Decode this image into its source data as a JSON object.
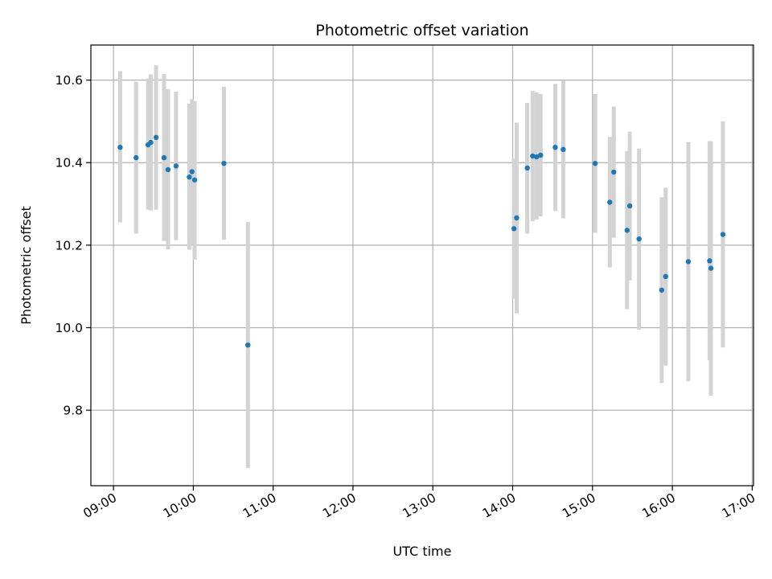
{
  "chart_data": {
    "type": "scatter",
    "title": "Photometric offset variation",
    "xlabel": "UTC time",
    "ylabel": "Photometric offset",
    "x_tick_labels": [
      "09:00",
      "10:00",
      "11:00",
      "12:00",
      "13:00",
      "14:00",
      "15:00",
      "16:00",
      "17:00"
    ],
    "x_ticks": [
      "09:00",
      "10:00",
      "11:00",
      "12:00",
      "13:00",
      "14:00",
      "15:00",
      "16:00",
      "17:00"
    ],
    "y_ticks": [
      9.8,
      10.0,
      10.2,
      10.4,
      10.6
    ],
    "y_tick_labels": [
      "9.8",
      "10.0",
      "10.2",
      "10.4",
      "10.6"
    ],
    "xlim": [
      "08:43",
      "17:01"
    ],
    "ylim": [
      9.617,
      10.685
    ],
    "grid": true,
    "marker_color": "#1f77b4",
    "errorbar_color": "#d3d3d3",
    "points": [
      {
        "time": "09:05",
        "value": 10.437,
        "low": 10.255,
        "high": 10.622
      },
      {
        "time": "09:17",
        "value": 10.412,
        "low": 10.228,
        "high": 10.596
      },
      {
        "time": "09:26",
        "value": 10.443,
        "low": 10.286,
        "high": 10.604
      },
      {
        "time": "09:28",
        "value": 10.449,
        "low": 10.284,
        "high": 10.614
      },
      {
        "time": "09:32",
        "value": 10.461,
        "low": 10.286,
        "high": 10.636
      },
      {
        "time": "09:38",
        "value": 10.412,
        "low": 10.21,
        "high": 10.615
      },
      {
        "time": "09:41",
        "value": 10.383,
        "low": 10.19,
        "high": 10.578
      },
      {
        "time": "09:47",
        "value": 10.392,
        "low": 10.212,
        "high": 10.572
      },
      {
        "time": "09:57",
        "value": 10.365,
        "low": 10.189,
        "high": 10.543
      },
      {
        "time": "09:59",
        "value": 10.378,
        "low": 10.202,
        "high": 10.554
      },
      {
        "time": "10:01",
        "value": 10.358,
        "low": 10.165,
        "high": 10.549
      },
      {
        "time": "10:23",
        "value": 10.398,
        "low": 10.213,
        "high": 10.584
      },
      {
        "time": "10:41",
        "value": 9.958,
        "low": 9.66,
        "high": 10.256
      },
      {
        "time": "14:01",
        "value": 10.24,
        "low": 10.07,
        "high": 10.41
      },
      {
        "time": "14:03",
        "value": 10.266,
        "low": 10.035,
        "high": 10.497
      },
      {
        "time": "14:11",
        "value": 10.387,
        "low": 10.228,
        "high": 10.545
      },
      {
        "time": "14:15",
        "value": 10.416,
        "low": 10.258,
        "high": 10.574
      },
      {
        "time": "14:18",
        "value": 10.414,
        "low": 10.262,
        "high": 10.57
      },
      {
        "time": "14:21",
        "value": 10.418,
        "low": 10.27,
        "high": 10.566
      },
      {
        "time": "14:32",
        "value": 10.437,
        "low": 10.283,
        "high": 10.591
      },
      {
        "time": "14:38",
        "value": 10.432,
        "low": 10.265,
        "high": 10.599
      },
      {
        "time": "15:02",
        "value": 10.398,
        "low": 10.23,
        "high": 10.566
      },
      {
        "time": "15:13",
        "value": 10.304,
        "low": 10.146,
        "high": 10.462
      },
      {
        "time": "15:16",
        "value": 10.377,
        "low": 10.218,
        "high": 10.536
      },
      {
        "time": "15:26",
        "value": 10.236,
        "low": 10.045,
        "high": 10.428
      },
      {
        "time": "15:28",
        "value": 10.295,
        "low": 10.115,
        "high": 10.475
      },
      {
        "time": "15:35",
        "value": 10.215,
        "low": 9.995,
        "high": 10.434
      },
      {
        "time": "15:52",
        "value": 10.091,
        "low": 9.866,
        "high": 10.316
      },
      {
        "time": "15:55",
        "value": 10.124,
        "low": 9.908,
        "high": 10.339
      },
      {
        "time": "16:12",
        "value": 10.16,
        "low": 9.87,
        "high": 10.45
      },
      {
        "time": "16:28",
        "value": 10.162,
        "low": 9.921,
        "high": 10.452
      },
      {
        "time": "16:29",
        "value": 10.144,
        "low": 9.835,
        "high": 10.452
      },
      {
        "time": "16:38",
        "value": 10.226,
        "low": 9.952,
        "high": 10.5
      }
    ]
  }
}
